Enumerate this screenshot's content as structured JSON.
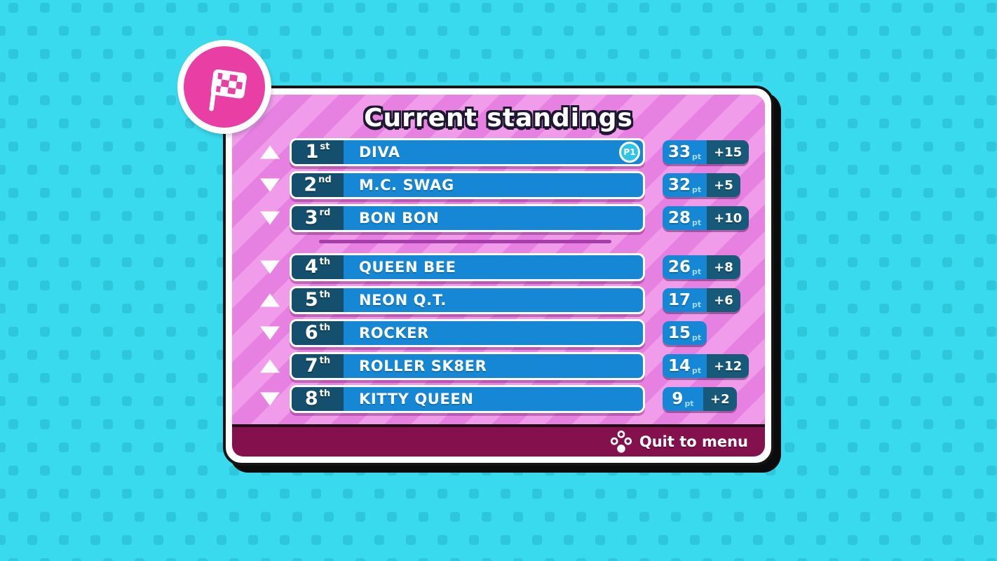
{
  "title": "Current standings",
  "labels": {
    "pt": "pt"
  },
  "standings": [
    {
      "rank": "1",
      "ordinal": "st",
      "name": "DIVA",
      "trend": "up",
      "points": "33",
      "delta": "+15",
      "player_badge": "P1"
    },
    {
      "rank": "2",
      "ordinal": "nd",
      "name": "M.C. SWAG",
      "trend": "down",
      "points": "32",
      "delta": "+5"
    },
    {
      "rank": "3",
      "ordinal": "rd",
      "name": "BON BON",
      "trend": "down",
      "points": "28",
      "delta": "+10"
    },
    {
      "rank": "4",
      "ordinal": "th",
      "name": "QUEEN BEE",
      "trend": "down",
      "points": "26",
      "delta": "+8"
    },
    {
      "rank": "5",
      "ordinal": "th",
      "name": "NEON Q.T.",
      "trend": "up",
      "points": "17",
      "delta": "+6"
    },
    {
      "rank": "6",
      "ordinal": "th",
      "name": "ROCKER",
      "trend": "down",
      "points": "15"
    },
    {
      "rank": "7",
      "ordinal": "th",
      "name": "ROLLER SK8ER",
      "trend": "up",
      "points": "14",
      "delta": "+12"
    },
    {
      "rank": "8",
      "ordinal": "th",
      "name": "KITTY QUEEN",
      "trend": "down",
      "points": "9",
      "delta": "+2"
    }
  ],
  "footer": {
    "quit_label": "Quit to menu"
  },
  "icons": {
    "flag": "checkered-flag-icon",
    "controller": "controller-buttons-icon",
    "trend_up": "triangle-up-icon",
    "trend_down": "triangle-down-icon"
  },
  "colors": {
    "background": "#3adaee",
    "background_dot": "#2dc6db",
    "panel_stripe_dark": "#e781e1",
    "panel_stripe_light": "#f19ceb",
    "panel_border": "#ffffff",
    "panel_outline": "#141414",
    "row_blue": "#1687d4",
    "rank_navy": "#14506d",
    "delta_navy": "#175978",
    "footer_maroon": "#84104d",
    "divider_purple": "#a73cab",
    "flag_pink": "#e93fa4",
    "p1_cyan": "#30c5e6",
    "text_white": "#ffffff"
  }
}
